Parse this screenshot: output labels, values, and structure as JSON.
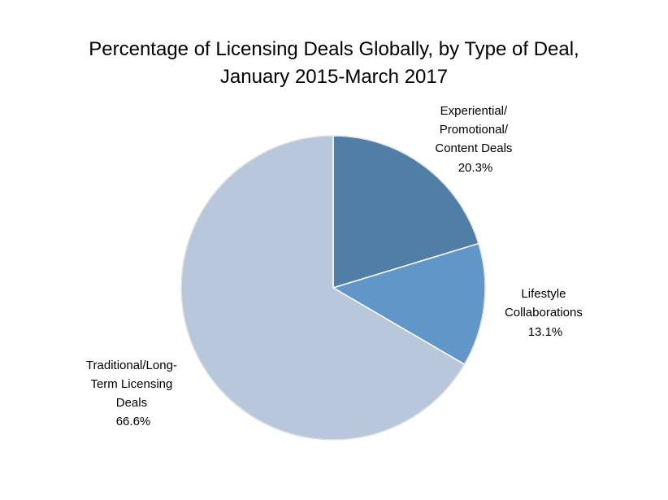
{
  "chart_data": {
    "type": "pie",
    "title_lines": [
      "Percentage of Licensing Deals Globally, by Type of Deal,",
      "January 2015-March 2017"
    ],
    "slices": [
      {
        "label_lines": [
          "Experiential/",
          "Promotional/",
          "Content Deals"
        ],
        "value": 20.3,
        "value_label": "20.3%",
        "color": "#517ea7"
      },
      {
        "label_lines": [
          "Lifestyle",
          "Collaborations"
        ],
        "value": 13.1,
        "value_label": "13.1%",
        "color": "#6197c8"
      },
      {
        "label_lines": [
          "Traditional/Long-",
          "Term Licensing",
          "Deals"
        ],
        "value": 66.6,
        "value_label": "66.6%",
        "color": "#b8c7dc"
      }
    ],
    "start": "12 o'clock",
    "direction": "clockwise",
    "legend": "none"
  }
}
